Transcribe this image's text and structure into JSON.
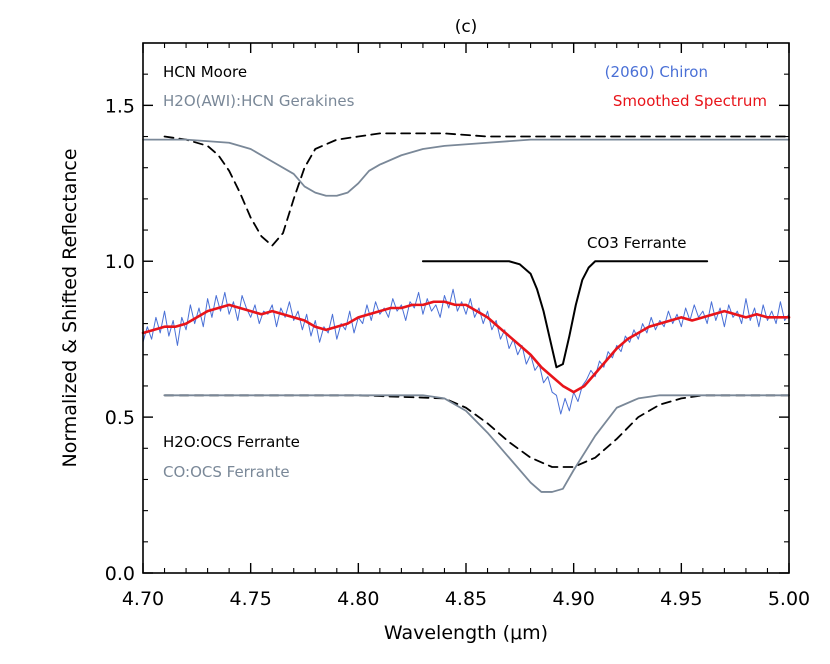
{
  "chart_data": {
    "type": "line",
    "title": "(c)",
    "xlabel": "Wavelength (μm)",
    "ylabel": "Normalized & Shifted Reflectance",
    "xlim": [
      4.7,
      5.0
    ],
    "ylim": [
      0.0,
      1.7
    ],
    "x_ticks": [
      4.7,
      4.75,
      4.8,
      4.85,
      4.9,
      4.95,
      5.0
    ],
    "x_tick_labels": [
      "4.70",
      "4.75",
      "4.80",
      "4.85",
      "4.90",
      "4.95",
      "5.00"
    ],
    "y_ticks": [
      0.0,
      0.5,
      1.0,
      1.5
    ],
    "y_tick_labels": [
      "0.0",
      "0.5",
      "1.0",
      "1.5"
    ],
    "grid": false,
    "series": [
      {
        "name": "(2060) Chiron",
        "color": "#4a70d6",
        "style": "solid-thin",
        "x": [
          4.7,
          4.702,
          4.704,
          4.706,
          4.708,
          4.71,
          4.712,
          4.714,
          4.716,
          4.718,
          4.72,
          4.722,
          4.724,
          4.726,
          4.728,
          4.73,
          4.732,
          4.734,
          4.736,
          4.738,
          4.74,
          4.742,
          4.744,
          4.746,
          4.748,
          4.75,
          4.752,
          4.754,
          4.756,
          4.758,
          4.76,
          4.762,
          4.764,
          4.766,
          4.768,
          4.77,
          4.772,
          4.774,
          4.776,
          4.778,
          4.78,
          4.782,
          4.784,
          4.786,
          4.788,
          4.79,
          4.792,
          4.794,
          4.796,
          4.798,
          4.8,
          4.802,
          4.804,
          4.806,
          4.808,
          4.81,
          4.812,
          4.814,
          4.816,
          4.818,
          4.82,
          4.822,
          4.824,
          4.826,
          4.828,
          4.83,
          4.832,
          4.834,
          4.836,
          4.838,
          4.84,
          4.842,
          4.844,
          4.846,
          4.848,
          4.85,
          4.852,
          4.854,
          4.856,
          4.858,
          4.86,
          4.862,
          4.864,
          4.866,
          4.868,
          4.87,
          4.872,
          4.874,
          4.876,
          4.878,
          4.88,
          4.882,
          4.884,
          4.886,
          4.888,
          4.89,
          4.892,
          4.894,
          4.896,
          4.898,
          4.9,
          4.902,
          4.904,
          4.906,
          4.908,
          4.91,
          4.912,
          4.914,
          4.916,
          4.918,
          4.92,
          4.922,
          4.924,
          4.926,
          4.928,
          4.93,
          4.932,
          4.934,
          4.936,
          4.938,
          4.94,
          4.942,
          4.944,
          4.946,
          4.948,
          4.95,
          4.952,
          4.954,
          4.956,
          4.958,
          4.96,
          4.962,
          4.964,
          4.966,
          4.968,
          4.97,
          4.972,
          4.974,
          4.976,
          4.978,
          4.98,
          4.982,
          4.984,
          4.986,
          4.988,
          4.99,
          4.992,
          4.994,
          4.996,
          4.998,
          5.0
        ],
        "y": [
          0.74,
          0.79,
          0.75,
          0.82,
          0.77,
          0.84,
          0.76,
          0.81,
          0.73,
          0.82,
          0.78,
          0.86,
          0.8,
          0.85,
          0.79,
          0.88,
          0.82,
          0.89,
          0.84,
          0.9,
          0.83,
          0.87,
          0.81,
          0.89,
          0.85,
          0.82,
          0.86,
          0.8,
          0.84,
          0.83,
          0.86,
          0.79,
          0.85,
          0.82,
          0.87,
          0.81,
          0.84,
          0.78,
          0.83,
          0.76,
          0.81,
          0.74,
          0.79,
          0.77,
          0.83,
          0.75,
          0.8,
          0.78,
          0.84,
          0.77,
          0.82,
          0.8,
          0.86,
          0.81,
          0.87,
          0.83,
          0.85,
          0.82,
          0.88,
          0.84,
          0.86,
          0.81,
          0.87,
          0.85,
          0.9,
          0.83,
          0.88,
          0.84,
          0.86,
          0.82,
          0.89,
          0.85,
          0.91,
          0.84,
          0.87,
          0.83,
          0.88,
          0.82,
          0.85,
          0.8,
          0.84,
          0.78,
          0.81,
          0.75,
          0.78,
          0.72,
          0.75,
          0.7,
          0.73,
          0.67,
          0.7,
          0.65,
          0.67,
          0.61,
          0.63,
          0.58,
          0.57,
          0.51,
          0.56,
          0.52,
          0.58,
          0.55,
          0.6,
          0.62,
          0.65,
          0.63,
          0.68,
          0.66,
          0.71,
          0.69,
          0.73,
          0.71,
          0.76,
          0.74,
          0.78,
          0.75,
          0.8,
          0.77,
          0.82,
          0.78,
          0.81,
          0.79,
          0.84,
          0.8,
          0.83,
          0.79,
          0.85,
          0.81,
          0.86,
          0.82,
          0.84,
          0.8,
          0.87,
          0.81,
          0.85,
          0.79,
          0.86,
          0.82,
          0.84,
          0.8,
          0.88,
          0.81,
          0.85,
          0.79,
          0.86,
          0.81,
          0.84,
          0.8,
          0.87,
          0.81,
          0.83
        ]
      },
      {
        "name": "Smoothed Spectrum",
        "color": "#e8141a",
        "style": "solid-thick",
        "x": [
          4.7,
          4.705,
          4.71,
          4.715,
          4.72,
          4.725,
          4.73,
          4.735,
          4.74,
          4.745,
          4.75,
          4.755,
          4.76,
          4.765,
          4.77,
          4.775,
          4.78,
          4.785,
          4.79,
          4.795,
          4.8,
          4.805,
          4.81,
          4.815,
          4.82,
          4.825,
          4.83,
          4.835,
          4.84,
          4.845,
          4.85,
          4.855,
          4.86,
          4.865,
          4.87,
          4.875,
          4.88,
          4.885,
          4.89,
          4.895,
          4.9,
          4.905,
          4.91,
          4.915,
          4.92,
          4.925,
          4.93,
          4.935,
          4.94,
          4.945,
          4.95,
          4.955,
          4.96,
          4.965,
          4.97,
          4.975,
          4.98,
          4.985,
          4.99,
          4.995,
          5.0
        ],
        "y": [
          0.77,
          0.78,
          0.79,
          0.79,
          0.8,
          0.82,
          0.84,
          0.85,
          0.86,
          0.85,
          0.84,
          0.83,
          0.84,
          0.83,
          0.82,
          0.81,
          0.79,
          0.78,
          0.79,
          0.8,
          0.82,
          0.83,
          0.84,
          0.85,
          0.85,
          0.86,
          0.86,
          0.87,
          0.87,
          0.86,
          0.86,
          0.84,
          0.82,
          0.79,
          0.76,
          0.73,
          0.7,
          0.66,
          0.63,
          0.6,
          0.58,
          0.6,
          0.64,
          0.68,
          0.72,
          0.75,
          0.77,
          0.79,
          0.8,
          0.81,
          0.82,
          0.81,
          0.82,
          0.83,
          0.84,
          0.83,
          0.82,
          0.83,
          0.82,
          0.82,
          0.82
        ]
      },
      {
        "name": "HCN Moore",
        "color": "#000000",
        "style": "dashed",
        "x": [
          4.71,
          4.72,
          4.73,
          4.735,
          4.74,
          4.745,
          4.75,
          4.755,
          4.76,
          4.765,
          4.77,
          4.775,
          4.78,
          4.79,
          4.8,
          4.81,
          4.82,
          4.83,
          4.84,
          4.86,
          4.88,
          4.9,
          4.95,
          5.0
        ],
        "y": [
          1.4,
          1.39,
          1.37,
          1.34,
          1.29,
          1.22,
          1.14,
          1.08,
          1.05,
          1.09,
          1.2,
          1.3,
          1.36,
          1.39,
          1.4,
          1.41,
          1.41,
          1.41,
          1.41,
          1.4,
          1.4,
          1.4,
          1.4,
          1.4
        ]
      },
      {
        "name": "H2O(AWI):HCN Gerakines",
        "color": "#7a8898",
        "style": "solid",
        "x": [
          4.7,
          4.72,
          4.74,
          4.75,
          4.76,
          4.77,
          4.775,
          4.78,
          4.785,
          4.79,
          4.795,
          4.8,
          4.805,
          4.81,
          4.82,
          4.83,
          4.84,
          4.86,
          4.88,
          4.9,
          4.95,
          5.0
        ],
        "y": [
          1.39,
          1.39,
          1.38,
          1.36,
          1.32,
          1.28,
          1.24,
          1.22,
          1.21,
          1.21,
          1.22,
          1.25,
          1.29,
          1.31,
          1.34,
          1.36,
          1.37,
          1.38,
          1.39,
          1.39,
          1.39,
          1.39
        ]
      },
      {
        "name": "CO3 Ferrante",
        "color": "#000000",
        "style": "solid-medium",
        "x": [
          4.83,
          4.85,
          4.87,
          4.875,
          4.88,
          4.883,
          4.886,
          4.889,
          4.892,
          4.895,
          4.898,
          4.901,
          4.904,
          4.907,
          4.91,
          4.915,
          4.93,
          4.962
        ],
        "y": [
          1.0,
          1.0,
          1.0,
          0.99,
          0.96,
          0.91,
          0.84,
          0.75,
          0.66,
          0.67,
          0.76,
          0.86,
          0.94,
          0.98,
          1.0,
          1.0,
          1.0,
          1.0
        ]
      },
      {
        "name": "H2O:OCS Ferrante",
        "color": "#000000",
        "style": "dashed",
        "x": [
          4.71,
          4.75,
          4.8,
          4.84,
          4.85,
          4.86,
          4.87,
          4.88,
          4.89,
          4.9,
          4.91,
          4.92,
          4.93,
          4.94,
          4.95,
          4.96,
          5.0
        ],
        "y": [
          0.57,
          0.57,
          0.57,
          0.56,
          0.53,
          0.48,
          0.42,
          0.37,
          0.34,
          0.34,
          0.37,
          0.43,
          0.5,
          0.54,
          0.56,
          0.57,
          0.57
        ]
      },
      {
        "name": "CO:OCS Ferrante",
        "color": "#7a8898",
        "style": "solid",
        "x": [
          4.71,
          4.75,
          4.8,
          4.83,
          4.84,
          4.85,
          4.86,
          4.87,
          4.88,
          4.885,
          4.89,
          4.895,
          4.9,
          4.91,
          4.92,
          4.93,
          4.94,
          4.96,
          5.0
        ],
        "y": [
          0.57,
          0.57,
          0.57,
          0.57,
          0.56,
          0.52,
          0.45,
          0.37,
          0.29,
          0.26,
          0.26,
          0.27,
          0.33,
          0.44,
          0.53,
          0.56,
          0.57,
          0.57,
          0.57
        ]
      }
    ],
    "annotations": [
      {
        "text": "HCN Moore",
        "color": "#000000"
      },
      {
        "text": "H2O(AWI):HCN Gerakines",
        "color": "#7a8898"
      },
      {
        "text": "(2060) Chiron",
        "color": "#4a70d6"
      },
      {
        "text": "Smoothed Spectrum",
        "color": "#e8141a"
      },
      {
        "text": "CO3 Ferrante",
        "color": "#000000"
      },
      {
        "text": "H2O:OCS Ferrante",
        "color": "#000000"
      },
      {
        "text": "CO:OCS Ferrante",
        "color": "#7a8898"
      }
    ]
  }
}
